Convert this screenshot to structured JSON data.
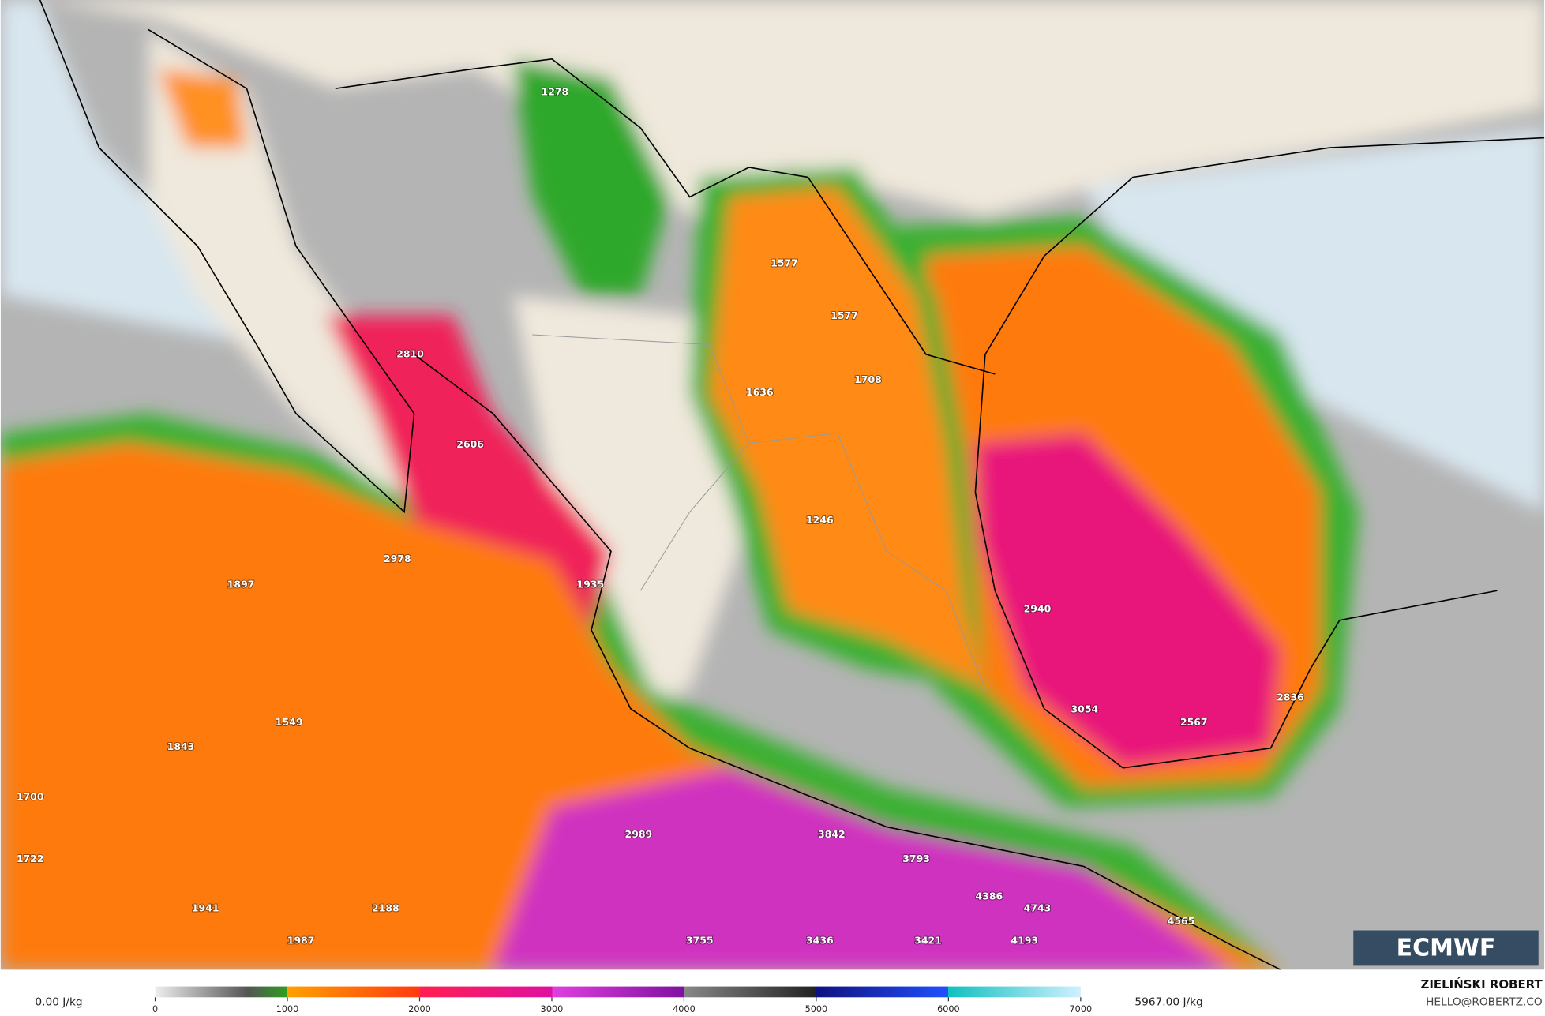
{
  "map": {
    "labels": [
      1278,
      1577,
      1577,
      2810,
      1708,
      1636,
      2606,
      1246,
      2978,
      1897,
      1935,
      2940,
      3054,
      2836,
      2567,
      1549,
      1843,
      1700,
      1722,
      2989,
      3842,
      3793,
      4386,
      4743,
      4565,
      1941,
      2188,
      1987,
      3755,
      3436,
      3421,
      4193
    ],
    "logo": "ECMWF"
  },
  "colorbar": {
    "lim": [
      0,
      7000
    ],
    "ticks": [
      0,
      1000,
      2000,
      3000,
      4000,
      5000,
      6000,
      7000
    ],
    "min_label": "0.00 J/kg",
    "max_label": "5967.00 J/kg"
  },
  "credits": {
    "author": "ZIELIŃSKI ROBERT",
    "contact": "HELLO@ROBERTZ.CO"
  }
}
